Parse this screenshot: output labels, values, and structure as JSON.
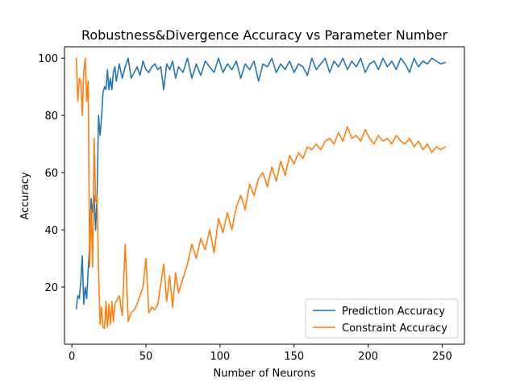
{
  "chart_data": {
    "type": "line",
    "title": "Robustness&Divergence Accuracy vs Parameter Number",
    "xlabel": "Number of Neurons",
    "ylabel": "Accuracy",
    "xlim": [
      -5,
      265
    ],
    "ylim": [
      0,
      104
    ],
    "xticks": [
      0,
      50,
      100,
      150,
      200,
      250
    ],
    "yticks": [
      20,
      40,
      60,
      80,
      100
    ],
    "grid": false,
    "legend_position": "lower-right",
    "series": [
      {
        "name": "Prediction Accuracy",
        "color": "#1f77b4",
        "x": [
          3,
          4,
          5,
          6,
          7,
          8,
          9,
          10,
          11,
          12,
          13,
          14,
          15,
          16,
          17,
          18,
          19,
          20,
          21,
          22,
          23,
          24,
          25,
          26,
          27,
          28,
          29,
          30,
          32,
          34,
          36,
          38,
          40,
          42,
          44,
          46,
          48,
          50,
          52,
          54,
          56,
          58,
          60,
          62,
          64,
          66,
          68,
          70,
          72,
          75,
          78,
          81,
          84,
          87,
          90,
          93,
          96,
          99,
          102,
          105,
          108,
          111,
          114,
          117,
          120,
          123,
          126,
          129,
          132,
          135,
          138,
          141,
          144,
          147,
          150,
          153,
          156,
          159,
          162,
          165,
          168,
          171,
          174,
          177,
          180,
          183,
          186,
          189,
          192,
          195,
          198,
          201,
          204,
          207,
          210,
          213,
          216,
          219,
          222,
          225,
          228,
          231,
          234,
          237,
          240,
          243,
          246,
          249,
          252
        ],
        "values": [
          12.5,
          17,
          16,
          22,
          31,
          14,
          20,
          16,
          26,
          35,
          51,
          46,
          52,
          40,
          52,
          80,
          73,
          79,
          88,
          90,
          89,
          96,
          89,
          93,
          89,
          95,
          97,
          92,
          98,
          93,
          97,
          100,
          93,
          95,
          97,
          94,
          99,
          96,
          95,
          97,
          98,
          96,
          97,
          89,
          98,
          96,
          99,
          93,
          97,
          95,
          100,
          93,
          98,
          94,
          99,
          97,
          95,
          100,
          95,
          98,
          96,
          99,
          93,
          98,
          96,
          99,
          92,
          98,
          97,
          100,
          95,
          98,
          96,
          99,
          95,
          98,
          97,
          94,
          100,
          96,
          98,
          100,
          95,
          99,
          97,
          100,
          96,
          99,
          97,
          100,
          95,
          98,
          99,
          96,
          100,
          97,
          99,
          96,
          100,
          98,
          95,
          100,
          97,
          99,
          98,
          100,
          99,
          98,
          98.5
        ]
      },
      {
        "name": "Constraint Accuracy",
        "color": "#ff7f0e",
        "x": [
          3,
          4,
          5,
          6,
          7,
          8,
          9,
          10,
          11,
          12,
          13,
          14,
          15,
          16,
          17,
          18,
          19,
          20,
          21,
          22,
          23,
          24,
          25,
          26,
          27,
          28,
          29,
          30,
          32,
          34,
          36,
          38,
          40,
          42,
          44,
          46,
          48,
          50,
          52,
          54,
          56,
          58,
          60,
          62,
          64,
          66,
          68,
          70,
          72,
          75,
          78,
          81,
          84,
          87,
          90,
          93,
          96,
          99,
          102,
          105,
          108,
          111,
          114,
          117,
          120,
          123,
          126,
          129,
          132,
          135,
          138,
          141,
          144,
          147,
          150,
          153,
          156,
          159,
          162,
          165,
          168,
          171,
          174,
          177,
          180,
          183,
          186,
          189,
          192,
          195,
          198,
          201,
          204,
          207,
          210,
          213,
          216,
          219,
          222,
          225,
          228,
          231,
          234,
          237,
          240,
          243,
          246,
          249,
          252
        ],
        "values": [
          100,
          85,
          93,
          92,
          80,
          95,
          100,
          85,
          92,
          27,
          47,
          27,
          72,
          50,
          52,
          26,
          7,
          13,
          6,
          5.5,
          15,
          6,
          14,
          7,
          15,
          8,
          14,
          15,
          17,
          10,
          35,
          8,
          11,
          12,
          14,
          17,
          20,
          30,
          11,
          13,
          12,
          14,
          21,
          28,
          15,
          24,
          13,
          25,
          18,
          23,
          28,
          35,
          30,
          37,
          33,
          40,
          32,
          44,
          39,
          46,
          40,
          48,
          52,
          47,
          56,
          52,
          58,
          60,
          55,
          62,
          57,
          64,
          59,
          66,
          63,
          67,
          65,
          69,
          68,
          70,
          68,
          71,
          72,
          70,
          74,
          71,
          76,
          72,
          73,
          71,
          75,
          72,
          70,
          73,
          71,
          72,
          70,
          73,
          71,
          70,
          72,
          69,
          71,
          68,
          70,
          67,
          69,
          68,
          69
        ]
      }
    ]
  }
}
